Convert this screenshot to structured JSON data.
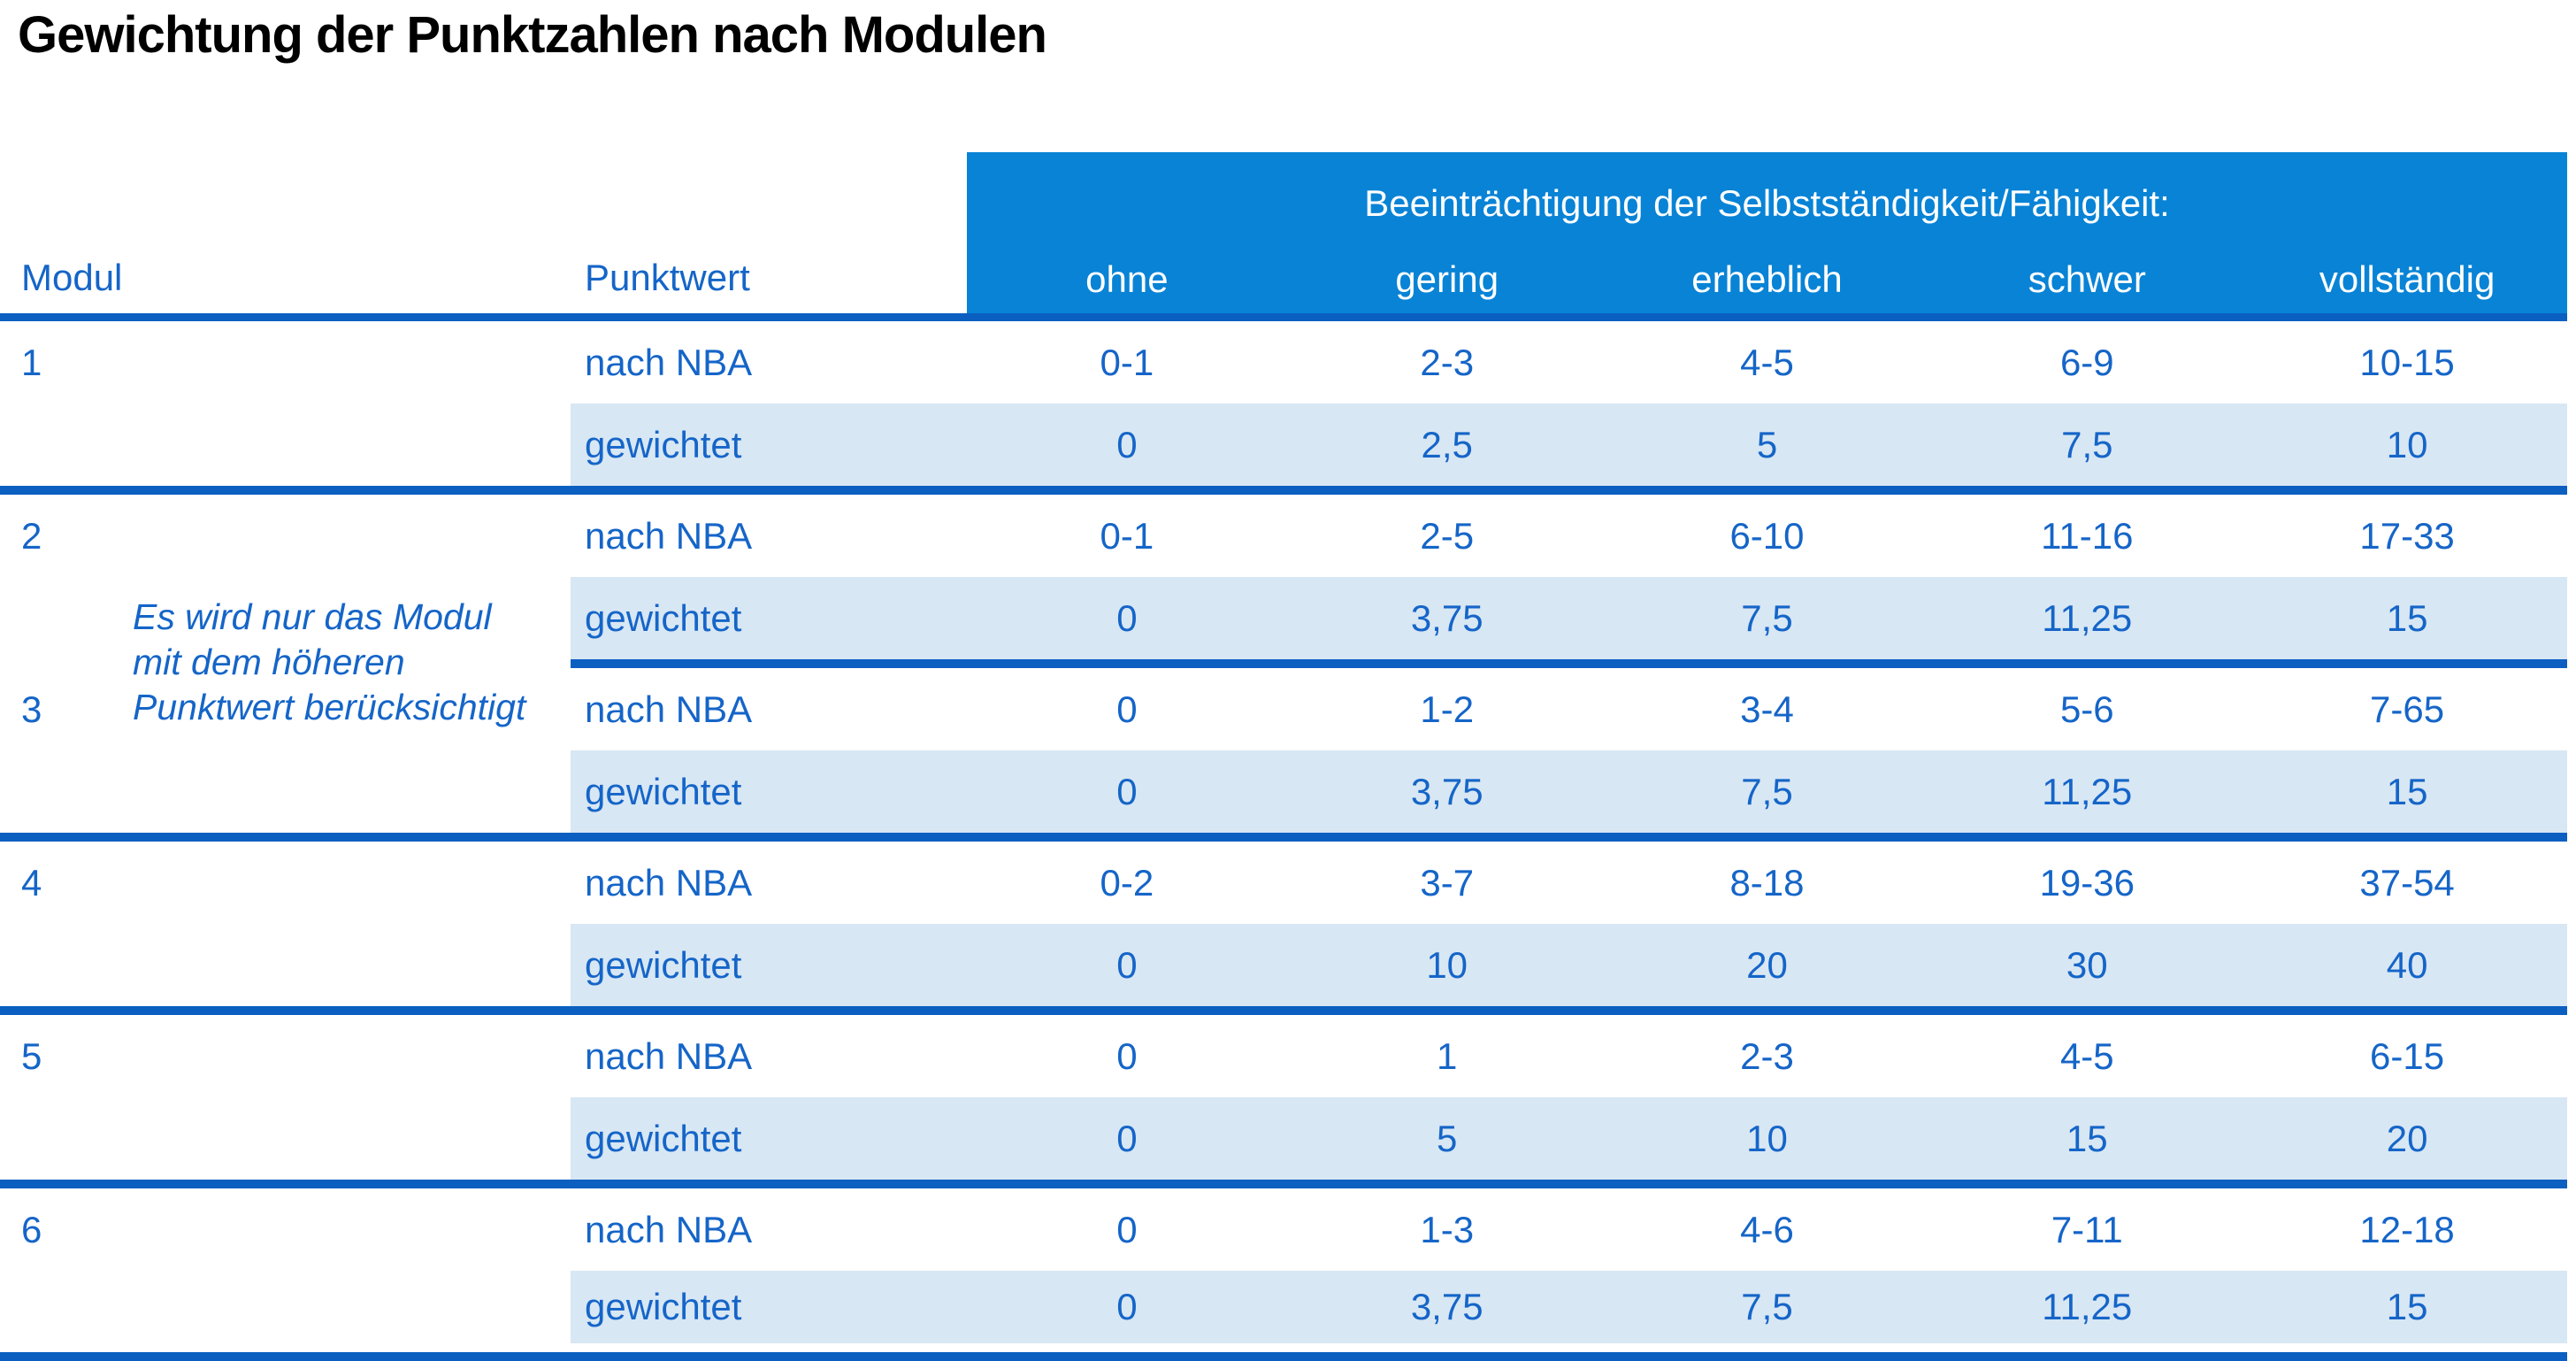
{
  "page": {
    "title": "Gewichtung der Punktzahlen nach Modulen"
  },
  "table": {
    "columns": {
      "modul": "Modul",
      "punktwert": "Punktwert"
    },
    "group_header": "Beeinträchtigung der Selbstständigkeit/Fähigkeit:",
    "severity_levels": [
      "ohne",
      "gering",
      "erheblich",
      "schwer",
      "vollständig"
    ],
    "row_labels": {
      "nba": "nach NBA",
      "weighted": "gewichtet"
    },
    "note_lines": [
      "Es wird nur das Modul",
      "mit dem höheren",
      "Punktwert berücksichtigt"
    ],
    "modules": [
      {
        "id": "1",
        "nba": [
          "0-1",
          "2-3",
          "4-5",
          "6-9",
          "10-15"
        ],
        "weighted": [
          "0",
          "2,5",
          "5",
          "7,5",
          "10"
        ]
      },
      {
        "id": "2",
        "nba": [
          "0-1",
          "2-5",
          "6-10",
          "11-16",
          "17-33"
        ],
        "weighted": [
          "0",
          "3,75",
          "7,5",
          "11,25",
          "15"
        ]
      },
      {
        "id": "3",
        "nba": [
          "0",
          "1-2",
          "3-4",
          "5-6",
          "7-65"
        ],
        "weighted": [
          "0",
          "3,75",
          "7,5",
          "11,25",
          "15"
        ]
      },
      {
        "id": "4",
        "nba": [
          "0-2",
          "3-7",
          "8-18",
          "19-36",
          "37-54"
        ],
        "weighted": [
          "0",
          "10",
          "20",
          "30",
          "40"
        ]
      },
      {
        "id": "5",
        "nba": [
          "0",
          "1",
          "2-3",
          "4-5",
          "6-15"
        ],
        "weighted": [
          "0",
          "5",
          "10",
          "15",
          "20"
        ]
      },
      {
        "id": "6",
        "nba": [
          "0",
          "1-3",
          "4-6",
          "7-11",
          "12-18"
        ],
        "weighted": [
          "0",
          "3,75",
          "7,5",
          "11,25",
          "15"
        ]
      }
    ],
    "colors": {
      "header_bg": "#0883d6",
      "header_text": "#ffffff",
      "rule_blue": "#0a5fc1",
      "weighted_row_bg": "#d8e7f4",
      "text_blue": "#1565c8",
      "title_color": "#000000"
    }
  }
}
